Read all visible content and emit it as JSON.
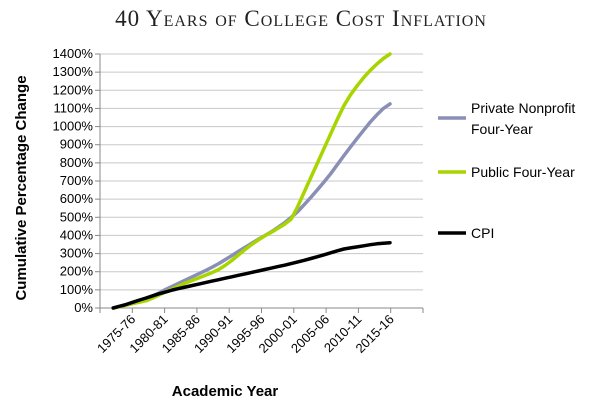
{
  "chart_data": {
    "type": "line",
    "title": "40 Years of College Cost Inflation",
    "xlabel": "Academic Year",
    "ylabel": "Cumulative Percentage Change",
    "ylim": [
      0,
      1400
    ],
    "yticks": [
      "0%",
      "100%",
      "200%",
      "300%",
      "400%",
      "500%",
      "600%",
      "700%",
      "800%",
      "900%",
      "1000%",
      "1100%",
      "1200%",
      "1300%",
      "1400%"
    ],
    "xticks": [
      "1975-76",
      "1980-81",
      "1985-86",
      "1990-91",
      "1995-96",
      "2000-01",
      "2005-06",
      "2010-11",
      "2015-16"
    ],
    "grid": true,
    "legend_position": "right",
    "x": [
      1975,
      1976,
      1977,
      1978,
      1979,
      1980,
      1981,
      1982,
      1983,
      1984,
      1985,
      1986,
      1987,
      1988,
      1989,
      1990,
      1991,
      1992,
      1993,
      1994,
      1995,
      1996,
      1997,
      1998,
      1999,
      2000,
      2001,
      2002,
      2003,
      2004,
      2005,
      2006,
      2007,
      2008,
      2009,
      2010,
      2011,
      2012,
      2013,
      2014,
      2015,
      2016,
      2017
    ],
    "series": [
      {
        "name": "Private Nonprofit Four-Year",
        "color": "#8a8fb5",
        "values": [
          0,
          9,
          18,
          27,
          36,
          50,
          66,
          84,
          103,
          120,
          137,
          155,
          172,
          189,
          206,
          225,
          245,
          267,
          289,
          312,
          334,
          356,
          378,
          399,
          420,
          445,
          470,
          500,
          532,
          570,
          610,
          652,
          695,
          740,
          790,
          840,
          888,
          935,
          980,
          1025,
          1065,
          1100,
          1125
        ]
      },
      {
        "name": "Public Four-Year",
        "color": "#a8d400",
        "values": [
          0,
          8,
          16,
          24,
          32,
          40,
          55,
          72,
          90,
          106,
          122,
          138,
          152,
          166,
          180,
          195,
          212,
          235,
          262,
          292,
          322,
          350,
          375,
          398,
          418,
          440,
          462,
          490,
          560,
          640,
          720,
          800,
          880,
          960,
          1040,
          1115,
          1175,
          1225,
          1270,
          1310,
          1345,
          1375,
          1400
        ]
      },
      {
        "name": "CPI",
        "color": "#000000",
        "values": [
          0,
          10,
          20,
          32,
          44,
          55,
          67,
          79,
          89,
          99,
          108,
          116,
          124,
          132,
          140,
          148,
          156,
          164,
          172,
          180,
          188,
          196,
          204,
          212,
          220,
          228,
          236,
          245,
          254,
          263,
          273,
          283,
          293,
          304,
          315,
          325,
          331,
          337,
          343,
          349,
          354,
          357,
          360
        ]
      }
    ]
  }
}
